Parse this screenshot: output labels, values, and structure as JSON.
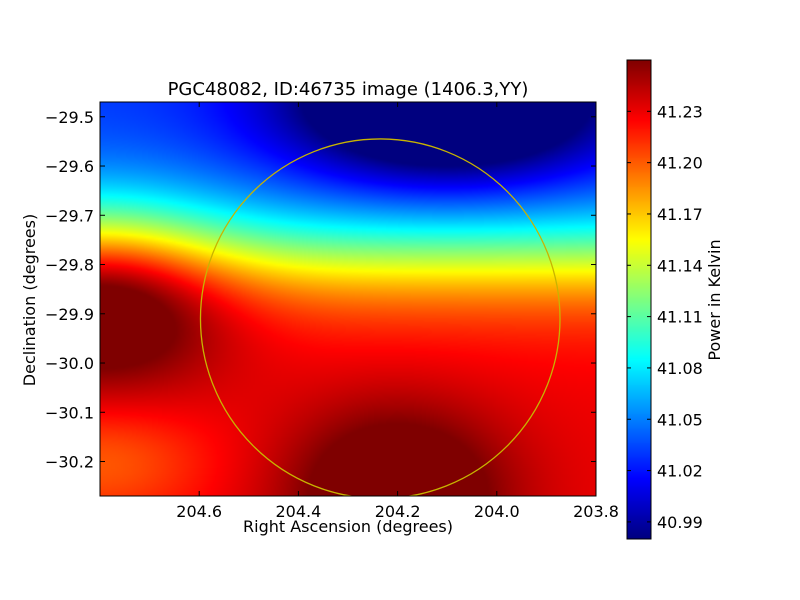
{
  "chart_data": {
    "type": "heatmap",
    "title": "PGC48082, ID:46735 image (1406.3,YY)",
    "xlabel": "Right Ascension (degrees)",
    "ylabel": "Declination (degrees)",
    "xlim": [
      204.8,
      203.8
    ],
    "ylim": [
      -30.27,
      -29.47
    ],
    "x_ticks": [
      204.6,
      204.4,
      204.2,
      204.0,
      203.8
    ],
    "x_tick_labels": [
      "204.6",
      "204.4",
      "204.2",
      "204.0",
      "203.8"
    ],
    "y_ticks": [
      -29.5,
      -29.6,
      -29.7,
      -29.8,
      -29.9,
      -30.0,
      -30.1,
      -30.2
    ],
    "y_tick_labels": [
      "−29.5",
      "−29.6",
      "−29.7",
      "−29.8",
      "−29.9",
      "−30.0",
      "−30.1",
      "−30.2"
    ],
    "colormap": "jet",
    "colorbar": {
      "label": "Power in Kelvin",
      "vmin": 40.98,
      "vmax": 41.26,
      "ticks": [
        41.23,
        41.2,
        41.17,
        41.14,
        41.11,
        41.08,
        41.05,
        41.02,
        40.99
      ],
      "tick_labels": [
        "41.23",
        "41.20",
        "41.17",
        "41.14",
        "41.11",
        "41.08",
        "41.05",
        "41.02",
        "40.99"
      ]
    },
    "features": {
      "minimum": {
        "ra": 204.1,
        "dec": -29.47,
        "value": 40.985
      },
      "maximum": {
        "ra": 204.2,
        "dec": -30.27,
        "value": 41.255
      },
      "left_lobe": {
        "ra": 204.8,
        "dec": -29.85,
        "value": 41.235
      }
    },
    "circle": {
      "center_ra": 204.235,
      "center_dec": -29.91,
      "radius_deg": 0.365,
      "color": "#c8b400"
    }
  }
}
